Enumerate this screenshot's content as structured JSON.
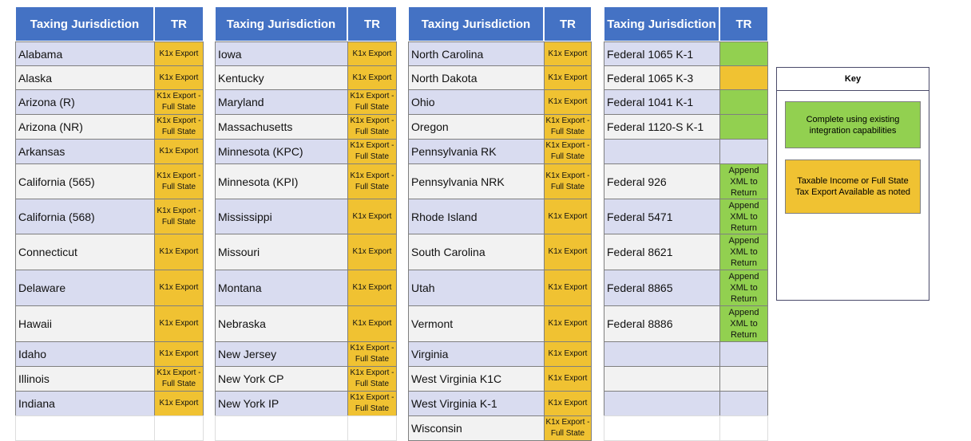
{
  "tables": [
    {
      "header": {
        "name": "Taxing Jurisdiction",
        "tr": "TR"
      },
      "rows": [
        {
          "name": "Alabama",
          "tr": "K1x Export",
          "tr_fill": "#f0c232"
        },
        {
          "name": "Alaska",
          "tr": "K1x Export",
          "tr_fill": "#f0c232"
        },
        {
          "name": "Arizona (R)",
          "tr": "K1x Export - Full State",
          "tr_fill": "#f0c232"
        },
        {
          "name": "Arizona (NR)",
          "tr": "K1x Export - Full State",
          "tr_fill": "#f0c232"
        },
        {
          "name": "Arkansas",
          "tr": "K1x Export",
          "tr_fill": "#f0c232"
        },
        {
          "name": "California (565)",
          "tr": "K1x Export - Full State",
          "tr_fill": "#f0c232"
        },
        {
          "name": "California (568)",
          "tr": "K1x Export - Full State",
          "tr_fill": "#f0c232"
        },
        {
          "name": "Connecticut",
          "tr": "K1x Export",
          "tr_fill": "#f0c232"
        },
        {
          "name": "Delaware",
          "tr": "K1x Export",
          "tr_fill": "#f0c232"
        },
        {
          "name": "Hawaii",
          "tr": "K1x Export",
          "tr_fill": "#f0c232"
        },
        {
          "name": "Idaho",
          "tr": "K1x Export",
          "tr_fill": "#f0c232"
        },
        {
          "name": "Illinois",
          "tr": "K1x Export - Full State",
          "tr_fill": "#f0c232"
        },
        {
          "name": "Indiana",
          "tr": "K1x Export",
          "tr_fill": "#f0c232"
        },
        null
      ]
    },
    {
      "header": {
        "name": "Taxing Jurisdiction",
        "tr": "TR"
      },
      "rows": [
        {
          "name": "Iowa",
          "tr": "K1x Export",
          "tr_fill": "#f0c232"
        },
        {
          "name": "Kentucky",
          "tr": "K1x Export",
          "tr_fill": "#f0c232"
        },
        {
          "name": "Maryland",
          "tr": "K1x Export - Full State",
          "tr_fill": "#f0c232"
        },
        {
          "name": "Massachusetts",
          "tr": "K1x Export - Full State",
          "tr_fill": "#f0c232"
        },
        {
          "name": "Minnesota (KPC)",
          "tr": "K1x Export - Full State",
          "tr_fill": "#f0c232"
        },
        {
          "name": "Minnesota (KPI)",
          "tr": "K1x Export - Full State",
          "tr_fill": "#f0c232"
        },
        {
          "name": "Mississippi",
          "tr": "K1x Export",
          "tr_fill": "#f0c232"
        },
        {
          "name": "Missouri",
          "tr": "K1x Export",
          "tr_fill": "#f0c232"
        },
        {
          "name": "Montana",
          "tr": "K1x Export",
          "tr_fill": "#f0c232"
        },
        {
          "name": "Nebraska",
          "tr": "K1x Export",
          "tr_fill": "#f0c232"
        },
        {
          "name": "New Jersey",
          "tr": "K1x Export - Full State",
          "tr_fill": "#f0c232"
        },
        {
          "name": "New York CP",
          "tr": "K1x Export - Full State",
          "tr_fill": "#f0c232"
        },
        {
          "name": "New York IP",
          "tr": "K1x Export - Full State",
          "tr_fill": "#f0c232"
        },
        null
      ]
    },
    {
      "header": {
        "name": "Taxing Jurisdiction",
        "tr": "TR"
      },
      "rows": [
        {
          "name": "North Carolina",
          "tr": "K1x Export",
          "tr_fill": "#f0c232"
        },
        {
          "name": "North Dakota",
          "tr": "K1x Export",
          "tr_fill": "#f0c232"
        },
        {
          "name": "Ohio",
          "tr": "K1x Export",
          "tr_fill": "#f0c232"
        },
        {
          "name": "Oregon",
          "tr": "K1x Export - Full State",
          "tr_fill": "#f0c232"
        },
        {
          "name": "Pennsylvania RK",
          "tr": "K1x Export - Full State",
          "tr_fill": "#f0c232"
        },
        {
          "name": "Pennsylvania NRK",
          "tr": "K1x Export - Full State",
          "tr_fill": "#f0c232"
        },
        {
          "name": "Rhode Island",
          "tr": "K1x Export",
          "tr_fill": "#f0c232"
        },
        {
          "name": "South Carolina",
          "tr": "K1x Export",
          "tr_fill": "#f0c232"
        },
        {
          "name": "Utah",
          "tr": "K1x Export",
          "tr_fill": "#f0c232"
        },
        {
          "name": "Vermont",
          "tr": "K1x Export",
          "tr_fill": "#f0c232"
        },
        {
          "name": "Virginia",
          "tr": "K1x Export",
          "tr_fill": "#f0c232"
        },
        {
          "name": "West Virginia K1C",
          "tr": "K1x Export",
          "tr_fill": "#f0c232"
        },
        {
          "name": "West Virginia K-1",
          "tr": "K1x Export",
          "tr_fill": "#f0c232"
        },
        {
          "name": "Wisconsin",
          "tr": "K1x Export - Full State",
          "tr_fill": "#f0c232"
        }
      ]
    },
    {
      "header": {
        "name": "Taxing Jurisdiction",
        "tr": "TR"
      },
      "rows": [
        {
          "name": "Federal 1065 K-1",
          "tr_fill": "#92d050"
        },
        {
          "name": "Federal 1065 K-3",
          "tr_fill": "#f0c232"
        },
        {
          "name": "Federal 1041 K-1",
          "tr_fill": "#92d050"
        },
        {
          "name": "Federal 1120-S K-1",
          "tr_fill": "#92d050"
        },
        null,
        {
          "name": "Federal 926",
          "tr": "Append XML to Return",
          "tr_fill": "#92d050"
        },
        {
          "name": "Federal 5471",
          "tr": "Append XML to Return",
          "tr_fill": "#92d050"
        },
        {
          "name": "Federal 8621",
          "tr": "Append XML to Return",
          "tr_fill": "#92d050"
        },
        {
          "name": "Federal 8865",
          "tr": "Append XML to Return",
          "tr_fill": "#92d050"
        },
        {
          "name": "Federal 8886",
          "tr": "Append XML to Return",
          "tr_fill": "#92d050"
        },
        null,
        null,
        null,
        null
      ]
    }
  ],
  "key": {
    "title": "Key",
    "items": [
      {
        "label": "Complete using existing integration capabilities",
        "color": "#92d050"
      },
      {
        "label": "Taxable Income or Full State Tax Export Available as noted",
        "color": "#f0c232"
      }
    ]
  }
}
